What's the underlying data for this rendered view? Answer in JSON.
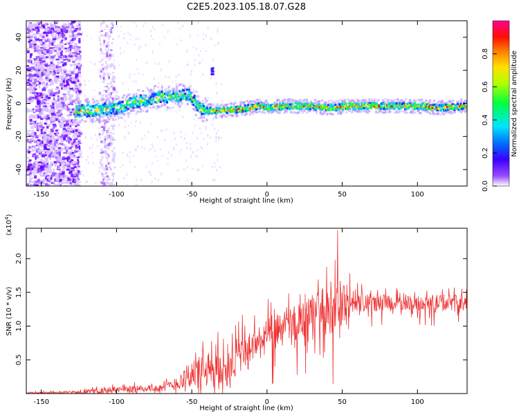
{
  "figure_title": "C2E5.2023.105.18.07.G28",
  "chart_data": [
    {
      "type": "heatmap",
      "xlabel": "Height of straight line (km)",
      "ylabel": "Frequency (Hz)",
      "xlim": [
        -160,
        133
      ],
      "ylim": [
        -50,
        50
      ],
      "x_ticks": [
        -150,
        -100,
        -50,
        0,
        50,
        100
      ],
      "y_ticks": [
        -40,
        -20,
        0,
        20,
        40
      ],
      "colorbar": {
        "label": "Normalized spectral amplitude",
        "ticks": [
          0.0,
          0.2,
          0.4,
          0.6,
          0.8
        ],
        "range": [
          0,
          1
        ],
        "colors": [
          "#ffffff",
          "#7a00ff",
          "#0000ff",
          "#00e5ff",
          "#00ff00",
          "#ffff00",
          "#ff7f00",
          "#ff0000",
          "#ff0080"
        ]
      },
      "ridge": [
        {
          "x": -125,
          "y": -4
        },
        {
          "x": -110,
          "y": -3
        },
        {
          "x": -100,
          "y": -2
        },
        {
          "x": -90,
          "y": 1
        },
        {
          "x": -75,
          "y": 4
        },
        {
          "x": -60,
          "y": 5
        },
        {
          "x": -52,
          "y": 6
        },
        {
          "x": -45,
          "y": -3
        },
        {
          "x": -35,
          "y": -4
        },
        {
          "x": -20,
          "y": -3
        },
        {
          "x": -5,
          "y": -1
        },
        {
          "x": 0,
          "y": -2
        },
        {
          "x": 10,
          "y": -1
        },
        {
          "x": 25,
          "y": -1
        },
        {
          "x": 40,
          "y": -2
        },
        {
          "x": 55,
          "y": -1
        },
        {
          "x": 70,
          "y": -1
        },
        {
          "x": 85,
          "y": -1
        },
        {
          "x": 100,
          "y": -1
        },
        {
          "x": 115,
          "y": -2
        },
        {
          "x": 133,
          "y": -1
        }
      ]
    },
    {
      "type": "line",
      "xlabel": "Height of straight line (km)",
      "ylabel": "SNR (10 * v/v)",
      "y_multiplier_label": "(x10",
      "y_multiplier_exp": "4",
      "xlim": [
        -160,
        133
      ],
      "ylim": [
        0,
        2.45
      ],
      "x_ticks": [
        -150,
        -100,
        -50,
        0,
        50,
        100
      ],
      "y_ticks": [
        0.5,
        1.0,
        1.5,
        2.0
      ],
      "y_tick_labels": [
        "0.5",
        "1.0",
        "1.5",
        "2.0"
      ],
      "series_color": "#ee3333",
      "envelope": [
        {
          "x": -160,
          "base": 0.01,
          "amp": 0.02
        },
        {
          "x": -130,
          "base": 0.02,
          "amp": 0.03
        },
        {
          "x": -110,
          "base": 0.04,
          "amp": 0.08
        },
        {
          "x": -90,
          "base": 0.07,
          "amp": 0.1
        },
        {
          "x": -70,
          "base": 0.08,
          "amp": 0.1
        },
        {
          "x": -60,
          "base": 0.15,
          "amp": 0.2
        },
        {
          "x": -50,
          "base": 0.3,
          "amp": 0.45
        },
        {
          "x": -40,
          "base": 0.3,
          "amp": 0.55
        },
        {
          "x": -30,
          "base": 0.35,
          "amp": 0.65
        },
        {
          "x": -20,
          "base": 0.55,
          "amp": 0.6
        },
        {
          "x": -10,
          "base": 0.7,
          "amp": 0.5
        },
        {
          "x": 0,
          "base": 0.85,
          "amp": 0.55
        },
        {
          "x": 10,
          "base": 0.95,
          "amp": 0.5
        },
        {
          "x": 20,
          "base": 1.05,
          "amp": 0.55
        },
        {
          "x": 30,
          "base": 1.15,
          "amp": 0.6
        },
        {
          "x": 40,
          "base": 1.25,
          "amp": 0.75
        },
        {
          "x": 47,
          "base": 1.35,
          "amp": 0.9
        },
        {
          "x": 55,
          "base": 1.35,
          "amp": 0.45
        },
        {
          "x": 70,
          "base": 1.35,
          "amp": 0.25
        },
        {
          "x": 85,
          "base": 1.35,
          "amp": 0.22
        },
        {
          "x": 100,
          "base": 1.33,
          "amp": 0.22
        },
        {
          "x": 115,
          "base": 1.35,
          "amp": 0.25
        },
        {
          "x": 133,
          "base": 1.32,
          "amp": 0.28
        }
      ],
      "peak": {
        "x": 47,
        "y": 2.42
      }
    }
  ]
}
